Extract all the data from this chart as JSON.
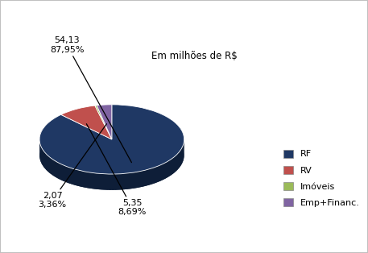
{
  "labels": [
    "RF",
    "RV",
    "Imóveis",
    "Emp+Financ."
  ],
  "values": [
    54.13,
    5.35,
    0.25,
    2.07
  ],
  "colors": [
    "#1f3864",
    "#c0504d",
    "#9bbb59",
    "#8064a2"
  ],
  "dark_colors": [
    "#0e1e38",
    "#7a2e2b",
    "#5e7235",
    "#4e3d63"
  ],
  "subtitle": "Em milhões de R$",
  "annotation_RF": "54,13\n87,95%",
  "annotation_RV": "5,35\n8,69%",
  "annotation_Emp": "2,07\n3,36%",
  "legend_labels": [
    "RF",
    "RV",
    "Imóveis",
    "Emp+Financ."
  ],
  "yscale": 0.48,
  "depth": 0.22,
  "background_color": "#ffffff",
  "border_color": "#c0c0c0"
}
